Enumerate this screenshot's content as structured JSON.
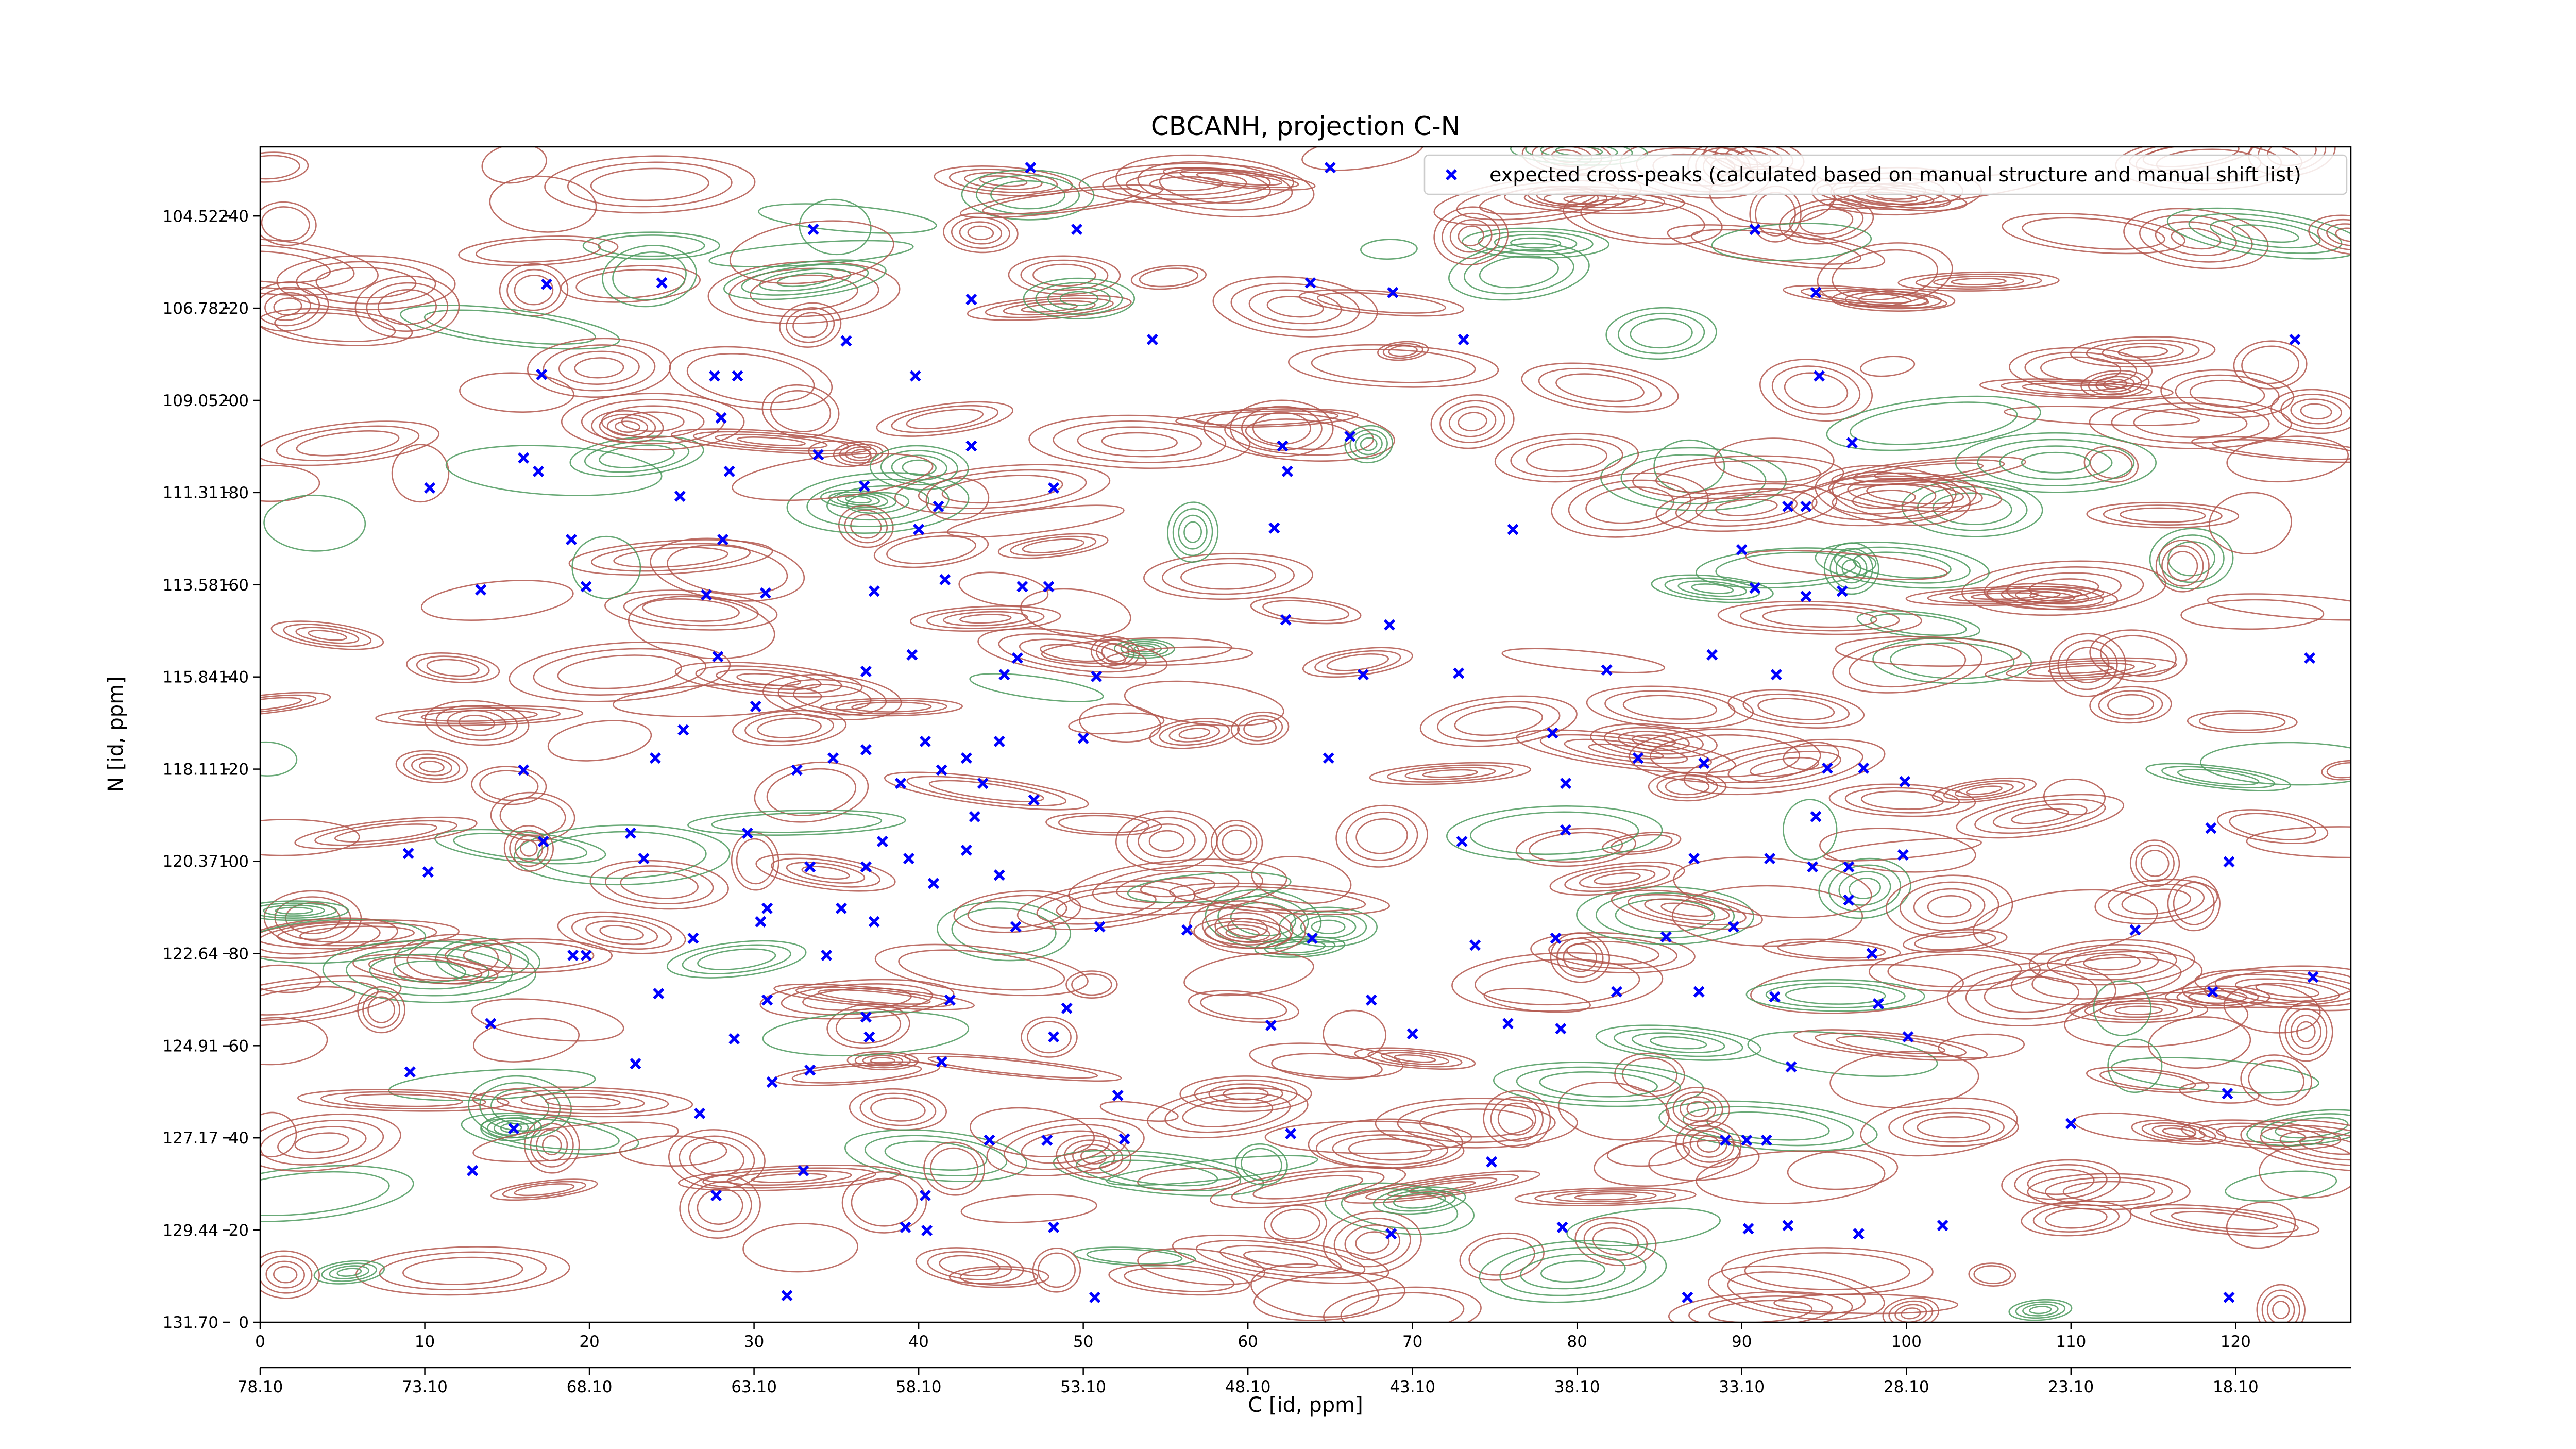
{
  "chart_data": {
    "type": "scatter",
    "title": "CBCANH, projection C-N",
    "xlabel": "C [id, ppm]",
    "ylabel": "N [id, ppm]",
    "legend": "upper right",
    "xlim": [
      0,
      127
    ],
    "xticks": [
      0,
      10,
      20,
      30,
      40,
      50,
      60,
      70,
      80,
      90,
      100,
      110,
      120
    ],
    "ylim": [
      0,
      255
    ],
    "yticks": [
      0,
      20,
      40,
      60,
      80,
      100,
      120,
      140,
      160,
      180,
      200,
      220,
      240
    ],
    "x2lim": [
      78.1,
      14.6
    ],
    "x2ticks": [
      {
        "value": 78.1,
        "label": "78.10"
      },
      {
        "value": 73.1,
        "label": "73.10"
      },
      {
        "value": 68.1,
        "label": "68.10"
      },
      {
        "value": 63.1,
        "label": "63.10"
      },
      {
        "value": 58.1,
        "label": "58.10"
      },
      {
        "value": 53.1,
        "label": "53.10"
      },
      {
        "value": 48.1,
        "label": "48.10"
      },
      {
        "value": 43.1,
        "label": "43.10"
      },
      {
        "value": 38.1,
        "label": "38.10"
      },
      {
        "value": 33.1,
        "label": "33.10"
      },
      {
        "value": 28.1,
        "label": "28.10"
      },
      {
        "value": 23.1,
        "label": "23.10"
      },
      {
        "value": 18.1,
        "label": "18.10"
      }
    ],
    "y2lim": [
      131.7,
      102.82
    ],
    "y2ticks": [
      {
        "value": 131.7,
        "label": "131.70"
      },
      129.44,
      127.17,
      124.91,
      122.64,
      120.37,
      118.11,
      115.84,
      113.58,
      111.31,
      109.05,
      106.78,
      104.52
    ],
    "x": [
      46.8,
      65.0,
      33.6,
      49.6,
      90.8,
      17.4,
      24.4,
      63.8,
      68.8,
      94.5,
      43.2,
      35.6,
      54.2,
      73.1,
      123.6,
      27.6,
      29.0,
      39.8,
      17.1,
      94.7,
      28.0,
      16.0,
      16.9,
      33.9,
      43.2,
      62.1,
      66.2,
      96.7,
      10.3,
      25.5,
      28.5,
      36.7,
      48.2,
      62.4,
      41.2,
      92.8,
      93.9,
      18.9,
      28.1,
      40.0,
      61.6,
      76.1,
      90.0,
      13.4,
      19.8,
      27.1,
      30.7,
      37.3,
      41.6,
      46.3,
      47.9,
      62.3,
      68.6,
      90.8,
      93.9,
      96.1,
      27.8,
      36.8,
      39.6,
      45.2,
      46.0,
      50.8,
      67.0,
      72.8,
      81.8,
      88.2,
      92.1,
      124.5,
      16.0,
      24.0,
      25.7,
      30.1,
      32.6,
      34.8,
      36.8,
      40.4,
      42.9,
      44.9,
      50.0,
      64.9,
      78.5,
      83.7,
      87.7,
      95.2,
      97.4,
      99.9,
      9.0,
      10.2,
      17.2,
      22.5,
      23.3,
      29.6,
      33.4,
      36.8,
      39.4,
      42.9,
      44.9,
      73.0,
      79.3,
      87.1,
      91.7,
      94.3,
      96.5,
      99.8,
      118.5,
      119.6,
      19.0,
      19.8,
      26.3,
      30.4,
      34.4,
      37.3,
      45.9,
      51.0,
      56.3,
      63.9,
      73.8,
      78.7,
      85.4,
      89.5,
      97.9,
      113.9,
      124.7,
      24.2,
      30.8,
      36.8,
      41.9,
      49.0,
      67.5,
      75.8,
      79.0,
      82.4,
      87.4,
      92.0,
      98.3,
      118.6,
      14.0,
      22.8,
      28.8,
      33.4,
      37.0,
      41.4,
      48.2,
      52.1,
      61.4,
      70.0,
      93.0,
      100.1,
      9.1,
      15.4,
      26.7,
      31.1,
      44.3,
      47.8,
      52.5,
      62.6,
      74.8,
      89.0,
      90.3,
      91.5,
      110.0,
      119.5,
      12.9,
      33.0,
      40.4,
      27.7,
      39.2,
      40.5,
      48.2,
      68.7,
      79.1,
      90.4,
      92.8,
      97.1,
      102.2,
      32.0,
      50.7,
      86.7,
      119.6,
      38.9,
      41.4,
      43.9,
      37.8,
      40.9,
      35.3,
      47.0,
      43.4,
      30.8,
      94.5,
      96.5,
      79.3
    ],
    "series": [
      {
        "name": "expected cross-peaks (calculated based on manual structure and manual shift list)",
        "color": "#0000ff",
        "values": [
          250.5,
          250.5,
          237.1,
          237.1,
          237.1,
          225.2,
          225.5,
          225.5,
          223.4,
          223.4,
          221.9,
          212.9,
          213.2,
          213.2,
          213.2,
          205.3,
          205.3,
          205.3,
          205.6,
          205.3,
          196.2,
          187.5,
          184.6,
          188.2,
          190.1,
          190.1,
          192.2,
          190.8,
          181.0,
          179.2,
          184.6,
          181.4,
          181.0,
          184.6,
          177.0,
          177.0,
          177.0,
          169.8,
          169.8,
          172.0,
          172.3,
          172.0,
          167.6,
          158.9,
          159.6,
          157.8,
          158.2,
          158.6,
          161.1,
          159.6,
          159.6,
          152.4,
          151.3,
          159.3,
          157.5,
          158.6,
          144.4,
          141.2,
          144.8,
          140.5,
          144.1,
          140.1,
          140.5,
          140.8,
          141.5,
          144.8,
          140.5,
          144.1,
          119.8,
          122.4,
          128.5,
          133.6,
          119.8,
          122.4,
          124.2,
          126.0,
          122.4,
          126.0,
          126.7,
          122.4,
          127.8,
          122.4,
          121.3,
          120.2,
          120.2,
          117.3,
          101.7,
          97.7,
          104.3,
          106.1,
          100.6,
          106.1,
          98.8,
          98.8,
          100.6,
          102.4,
          97.0,
          104.3,
          106.8,
          100.6,
          100.6,
          98.8,
          98.8,
          101.4,
          107.2,
          99.9,
          79.6,
          79.6,
          83.3,
          86.9,
          79.6,
          86.9,
          85.8,
          85.8,
          85.1,
          83.3,
          81.8,
          83.3,
          83.6,
          85.8,
          80.0,
          85.1,
          74.9,
          71.3,
          69.9,
          66.2,
          69.9,
          68.1,
          69.9,
          64.8,
          63.7,
          71.7,
          71.7,
          70.6,
          69.1,
          71.7,
          64.8,
          56.1,
          61.5,
          54.7,
          61.9,
          56.5,
          61.9,
          49.2,
          64.4,
          62.6,
          55.4,
          61.9,
          54.3,
          42.0,
          45.3,
          52.1,
          39.5,
          39.5,
          39.8,
          40.9,
          34.8,
          39.5,
          39.5,
          39.5,
          43.1,
          49.6,
          32.9,
          32.9,
          27.5,
          27.5,
          20.6,
          19.9,
          20.6,
          19.2,
          20.6,
          20.3,
          21.0,
          19.2,
          21.0,
          5.8,
          5.4,
          5.4,
          5.4,
          116.9,
          119.8,
          116.9,
          104.3,
          95.2,
          89.8,
          113.3,
          109.7,
          89.8,
          109.7,
          91.6,
          116.9
        ]
      }
    ]
  }
}
